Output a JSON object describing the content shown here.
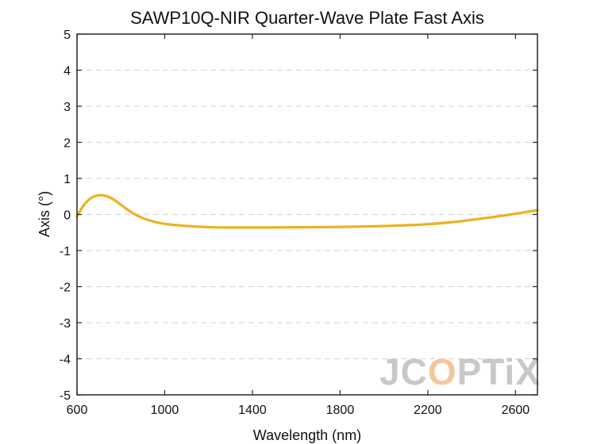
{
  "chart_data": {
    "type": "line",
    "title": "SAWP10Q-NIR Quarter-Wave Plate Fast Axis",
    "xlabel": "Wavelength (nm)",
    "ylabel": "Axis (°)",
    "xlim": [
      600,
      2700
    ],
    "ylim": [
      -5,
      5
    ],
    "xticks": [
      "600",
      "1000",
      "1400",
      "1800",
      "2200",
      "2600"
    ],
    "yticks": [
      "5",
      "4",
      "3",
      "2",
      "1",
      "0",
      "-1",
      "-2",
      "-3",
      "-4",
      "-5"
    ],
    "grid": "horizontal dashed",
    "series": [
      {
        "color": "#EDB120",
        "x": [
          600,
          630,
          660,
          690,
          720,
          750,
          780,
          820,
          860,
          900,
          950,
          1000,
          1100,
          1200,
          1300,
          1400,
          1500,
          1600,
          1700,
          1800,
          1900,
          2000,
          2100,
          2200,
          2300,
          2400,
          2500,
          2600,
          2700
        ],
        "y": [
          -0.05,
          0.25,
          0.44,
          0.52,
          0.53,
          0.47,
          0.36,
          0.18,
          0.02,
          -0.1,
          -0.2,
          -0.26,
          -0.32,
          -0.35,
          -0.36,
          -0.36,
          -0.36,
          -0.355,
          -0.35,
          -0.345,
          -0.335,
          -0.32,
          -0.3,
          -0.27,
          -0.22,
          -0.15,
          -0.07,
          0.02,
          0.12
        ]
      }
    ]
  },
  "watermark": {
    "text_a": "JC",
    "text_b": "O",
    "text_c": "PTiX",
    "color": "#c8c8c8",
    "accent": "#f2c89a"
  }
}
